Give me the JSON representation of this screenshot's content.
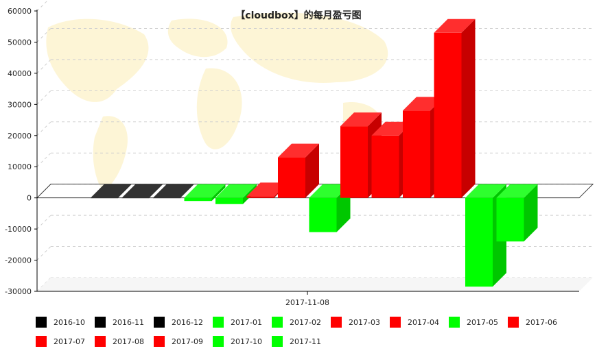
{
  "chart_data": {
    "type": "bar",
    "title": "【cloudbox】的每月盈亏图",
    "xlabel": "",
    "ylabel": "",
    "ylim": [
      -30000,
      60000
    ],
    "yticks": [
      60000,
      50000,
      40000,
      30000,
      20000,
      10000,
      0,
      -10000,
      -20000,
      -30000
    ],
    "x_category_label": "2017-11-08",
    "grid": true,
    "legend_position": "bottom",
    "series": [
      {
        "name": "2016-10",
        "value": 0,
        "color": "#000000"
      },
      {
        "name": "2016-11",
        "value": 0,
        "color": "#000000"
      },
      {
        "name": "2016-12",
        "value": 0,
        "color": "#000000"
      },
      {
        "name": "2017-01",
        "value": -1000,
        "color": "#00ff00"
      },
      {
        "name": "2017-02",
        "value": -2000,
        "color": "#00ff00"
      },
      {
        "name": "2017-03",
        "value": 500,
        "color": "#ff0000"
      },
      {
        "name": "2017-04",
        "value": 13000,
        "color": "#ff0000"
      },
      {
        "name": "2017-05",
        "value": -11000,
        "color": "#00ff00"
      },
      {
        "name": "2017-06",
        "value": 23000,
        "color": "#ff0000"
      },
      {
        "name": "2017-07",
        "value": 20000,
        "color": "#ff0000"
      },
      {
        "name": "2017-08",
        "value": 28000,
        "color": "#ff0000"
      },
      {
        "name": "2017-09",
        "value": 53000,
        "color": "#ff0000"
      },
      {
        "name": "2017-10",
        "value": -28500,
        "color": "#00ff00"
      },
      {
        "name": "2017-11",
        "value": -14000,
        "color": "#00ff00"
      }
    ]
  }
}
